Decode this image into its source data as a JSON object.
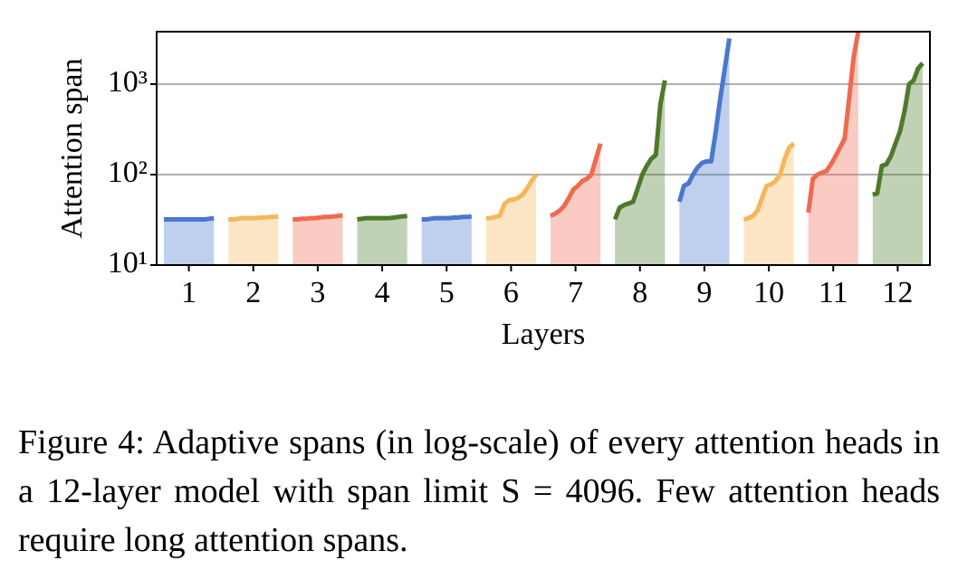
{
  "chart_data": {
    "type": "area",
    "ylabel": "Attention span",
    "xlabel": "Layers",
    "categories": [
      "1",
      "2",
      "3",
      "4",
      "5",
      "6",
      "7",
      "8",
      "9",
      "10",
      "11",
      "12"
    ],
    "log_y": true,
    "grid": true,
    "ylim": [
      10,
      3800
    ],
    "yticks": [
      {
        "value": 10,
        "label": "10¹"
      },
      {
        "value": 100,
        "label": "10²"
      },
      {
        "value": 1000,
        "label": "10³"
      }
    ],
    "series": [
      {
        "color": "#4878cf",
        "values": [
          32,
          32,
          32,
          32,
          32,
          32,
          32,
          32,
          32,
          32,
          32.5,
          33
        ]
      },
      {
        "color": "#f5b75a",
        "values": [
          32,
          32,
          32.5,
          33,
          33,
          33,
          33,
          33.5,
          33.5,
          34,
          34,
          34.5
        ]
      },
      {
        "color": "#ee6a50",
        "values": [
          32,
          32,
          32.5,
          32.5,
          33,
          33,
          33.5,
          34,
          34,
          34.5,
          35,
          35.5
        ]
      },
      {
        "color": "#4e7a2a",
        "values": [
          32,
          32.5,
          33,
          33,
          33,
          33,
          33,
          33,
          33.5,
          34,
          34.5,
          35
        ]
      },
      {
        "color": "#4878cf",
        "values": [
          32,
          32,
          32.5,
          33,
          33,
          33,
          33,
          33.5,
          33.5,
          34,
          34,
          34.5
        ]
      },
      {
        "color": "#f5b75a",
        "values": [
          33,
          33,
          34,
          35,
          47,
          52,
          53,
          55,
          60,
          70,
          85,
          100
        ]
      },
      {
        "color": "#ee6a50",
        "values": [
          35,
          37,
          40,
          45,
          55,
          68,
          75,
          85,
          90,
          100,
          150,
          220
        ]
      },
      {
        "color": "#4e7a2a",
        "values": [
          32,
          43,
          46,
          48,
          50,
          70,
          100,
          125,
          150,
          165,
          600,
          1100
        ]
      },
      {
        "color": "#4878cf",
        "values": [
          50,
          75,
          80,
          100,
          120,
          135,
          140,
          140,
          300,
          700,
          1500,
          3200
        ]
      },
      {
        "color": "#f5b75a",
        "values": [
          32,
          33,
          35,
          40,
          55,
          75,
          78,
          85,
          100,
          150,
          200,
          220
        ]
      },
      {
        "color": "#ee6a50",
        "values": [
          38,
          90,
          100,
          105,
          110,
          130,
          160,
          200,
          250,
          700,
          2000,
          3800
        ]
      },
      {
        "color": "#4e7a2a",
        "values": [
          60,
          62,
          125,
          130,
          160,
          220,
          300,
          500,
          1000,
          1100,
          1500,
          1700
        ]
      }
    ]
  },
  "caption": "Figure 4: Adaptive spans (in log-scale) of every attention heads in a 12-layer model with span limit S = 4096. Few attention heads require long attention spans."
}
